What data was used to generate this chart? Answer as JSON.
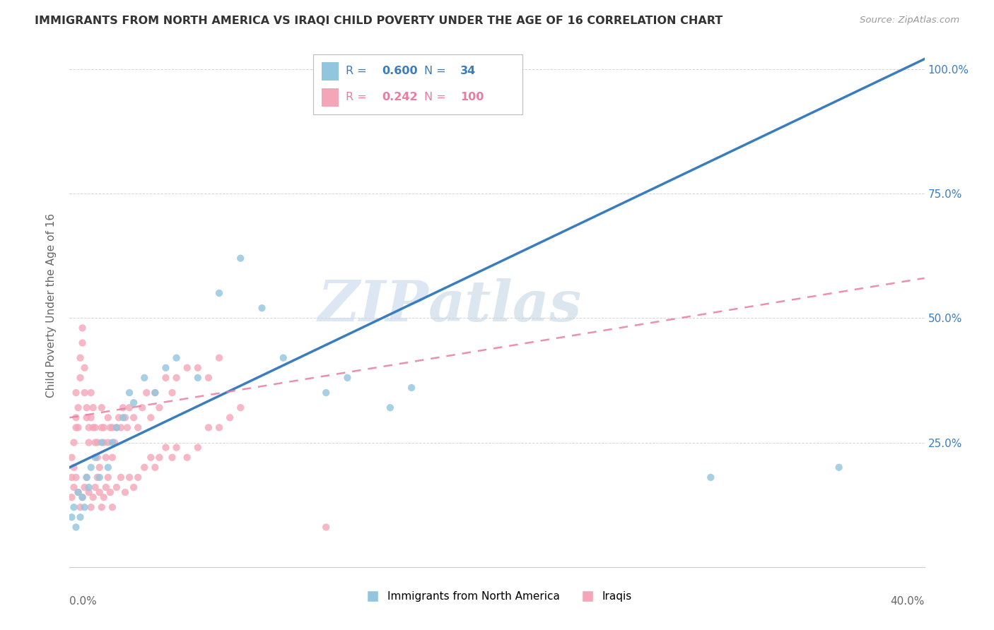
{
  "title": "IMMIGRANTS FROM NORTH AMERICA VS IRAQI CHILD POVERTY UNDER THE AGE OF 16 CORRELATION CHART",
  "source": "Source: ZipAtlas.com",
  "ylabel": "Child Poverty Under the Age of 16",
  "xmin": 0.0,
  "xmax": 0.4,
  "ymin": 0.0,
  "ymax": 1.05,
  "yticks": [
    0.0,
    0.25,
    0.5,
    0.75,
    1.0
  ],
  "ytick_labels_right": [
    "",
    "25.0%",
    "50.0%",
    "75.0%",
    "100.0%"
  ],
  "xtick_labels_ends": [
    "0.0%",
    "40.0%"
  ],
  "xticks_ends": [
    0.0,
    0.4
  ],
  "blue_R": 0.6,
  "blue_N": 34,
  "pink_R": 0.242,
  "pink_N": 100,
  "blue_color": "#92c5de",
  "pink_color": "#f4a6b8",
  "blue_line_color": "#3a7dbf",
  "pink_line_color": "#e87da0",
  "watermark_zip": "ZIP",
  "watermark_atlas": "atlas",
  "legend_blue_label": "Immigrants from North America",
  "legend_pink_label": "Iraqis",
  "blue_line_x0": 0.0,
  "blue_line_y0": 0.2,
  "blue_line_x1": 0.4,
  "blue_line_y1": 1.02,
  "pink_line_x0": 0.0,
  "pink_line_y0": 0.3,
  "pink_line_x1": 0.4,
  "pink_line_y1": 0.58,
  "blue_scatter_x": [
    0.001,
    0.002,
    0.003,
    0.004,
    0.005,
    0.006,
    0.007,
    0.008,
    0.009,
    0.01,
    0.012,
    0.014,
    0.015,
    0.018,
    0.02,
    0.022,
    0.025,
    0.028,
    0.03,
    0.035,
    0.04,
    0.045,
    0.05,
    0.06,
    0.07,
    0.08,
    0.09,
    0.1,
    0.12,
    0.13,
    0.15,
    0.16,
    0.3,
    0.36
  ],
  "blue_scatter_y": [
    0.1,
    0.12,
    0.08,
    0.15,
    0.1,
    0.14,
    0.12,
    0.18,
    0.16,
    0.2,
    0.22,
    0.18,
    0.25,
    0.2,
    0.25,
    0.28,
    0.3,
    0.35,
    0.33,
    0.38,
    0.35,
    0.4,
    0.42,
    0.38,
    0.55,
    0.62,
    0.52,
    0.42,
    0.35,
    0.38,
    0.32,
    0.36,
    0.18,
    0.2
  ],
  "pink_scatter_x": [
    0.001,
    0.001,
    0.002,
    0.002,
    0.003,
    0.003,
    0.003,
    0.004,
    0.004,
    0.005,
    0.005,
    0.006,
    0.006,
    0.007,
    0.007,
    0.008,
    0.008,
    0.009,
    0.009,
    0.01,
    0.01,
    0.011,
    0.011,
    0.012,
    0.012,
    0.013,
    0.013,
    0.014,
    0.015,
    0.015,
    0.016,
    0.016,
    0.017,
    0.018,
    0.018,
    0.019,
    0.02,
    0.02,
    0.021,
    0.022,
    0.023,
    0.024,
    0.025,
    0.026,
    0.027,
    0.028,
    0.03,
    0.032,
    0.034,
    0.036,
    0.038,
    0.04,
    0.042,
    0.045,
    0.048,
    0.05,
    0.055,
    0.06,
    0.065,
    0.07,
    0.001,
    0.002,
    0.003,
    0.004,
    0.005,
    0.006,
    0.007,
    0.008,
    0.009,
    0.01,
    0.011,
    0.012,
    0.013,
    0.014,
    0.015,
    0.016,
    0.017,
    0.018,
    0.019,
    0.02,
    0.022,
    0.024,
    0.026,
    0.028,
    0.03,
    0.032,
    0.035,
    0.038,
    0.04,
    0.042,
    0.045,
    0.048,
    0.05,
    0.055,
    0.06,
    0.065,
    0.07,
    0.075,
    0.08,
    0.12
  ],
  "pink_scatter_y": [
    0.18,
    0.22,
    0.2,
    0.25,
    0.3,
    0.28,
    0.35,
    0.32,
    0.28,
    0.38,
    0.42,
    0.48,
    0.45,
    0.4,
    0.35,
    0.32,
    0.3,
    0.28,
    0.25,
    0.3,
    0.35,
    0.28,
    0.32,
    0.25,
    0.28,
    0.22,
    0.25,
    0.2,
    0.28,
    0.32,
    0.25,
    0.28,
    0.22,
    0.25,
    0.3,
    0.28,
    0.22,
    0.28,
    0.25,
    0.28,
    0.3,
    0.28,
    0.32,
    0.3,
    0.28,
    0.32,
    0.3,
    0.28,
    0.32,
    0.35,
    0.3,
    0.35,
    0.32,
    0.38,
    0.35,
    0.38,
    0.4,
    0.4,
    0.38,
    0.42,
    0.14,
    0.16,
    0.18,
    0.15,
    0.12,
    0.14,
    0.16,
    0.18,
    0.15,
    0.12,
    0.14,
    0.16,
    0.18,
    0.15,
    0.12,
    0.14,
    0.16,
    0.18,
    0.15,
    0.12,
    0.16,
    0.18,
    0.15,
    0.18,
    0.16,
    0.18,
    0.2,
    0.22,
    0.2,
    0.22,
    0.24,
    0.22,
    0.24,
    0.22,
    0.24,
    0.28,
    0.28,
    0.3,
    0.32,
    0.08
  ]
}
